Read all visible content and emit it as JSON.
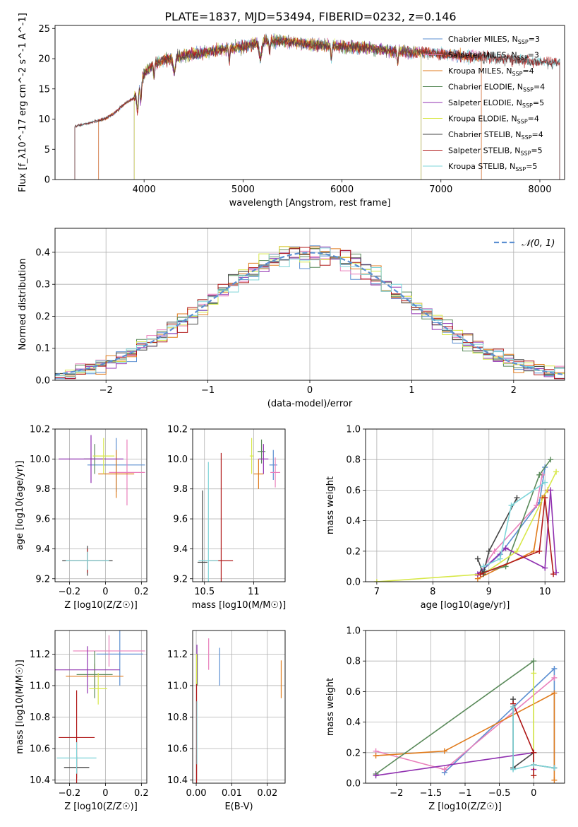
{
  "figure": {
    "title": "PLATE=1837, MJD=53494, FIBERID=0232, z=0.146"
  },
  "colors": {
    "Chabrier MILES": "#5b8fd1",
    "Salpeter MILES": "#e97fbb",
    "Kroupa MILES": "#e07b1c",
    "Chabrier ELODIE": "#5a8a5a",
    "Salpeter ELODIE": "#9030b0",
    "Kroupa ELODIE": "#d8e84a",
    "Chabrier STELIB": "#444444",
    "Salpeter STELIB": "#b01818",
    "Kroupa STELIB": "#7ed4d8"
  },
  "chart_data": [
    {
      "id": "spectrum",
      "type": "line",
      "xlabel": "wavelength [Angstrom, rest frame]",
      "ylabel": "Flux [f_λ10^-17 erg cm^-2 s^-1 A^-1]",
      "xlim": [
        3100,
        8250
      ],
      "ylim": [
        0,
        25.5
      ],
      "xticks": [
        4000,
        5000,
        6000,
        7000,
        8000
      ],
      "yticks": [
        0,
        5,
        10,
        15,
        20,
        25
      ],
      "legend_position": "upper-right",
      "legend": [
        {
          "model": "Chabrier MILES",
          "nssp": "3"
        },
        {
          "model": "Salpeter MILES",
          "nssp": "3"
        },
        {
          "model": "Kroupa MILES",
          "nssp": "4"
        },
        {
          "model": "Chabrier ELODIE",
          "nssp": "4"
        },
        {
          "model": "Salpeter ELODIE",
          "nssp": "5"
        },
        {
          "model": "Kroupa ELODIE",
          "nssp": "4"
        },
        {
          "model": "Chabrier STELIB",
          "nssp": "4"
        },
        {
          "model": "Salpeter STELIB",
          "nssp": "5"
        },
        {
          "model": "Kroupa STELIB",
          "nssp": "5"
        }
      ],
      "data_x": [
        3300,
        3400,
        3500,
        3600,
        3700,
        3800,
        3900,
        4000,
        4100,
        4200,
        4400,
        4600,
        4800,
        5000,
        5200,
        5400,
        5600,
        5800,
        6000,
        6200,
        6400,
        6600,
        6800,
        7000,
        7200,
        7400,
        7600,
        7800,
        8000,
        8200
      ],
      "data_y": [
        8.8,
        9.2,
        9.6,
        10,
        11,
        12.5,
        13.5,
        17.5,
        19,
        19.8,
        20.5,
        21,
        21.5,
        22,
        22.8,
        23,
        22.5,
        22.2,
        22,
        21.8,
        21.5,
        21.2,
        21,
        20.8,
        20.5,
        20.3,
        20,
        19.8,
        19.5,
        19.3
      ],
      "model_ranges": {
        "Chabrier MILES": [
          3540,
          7410
        ],
        "Salpeter MILES": [
          3540,
          7410
        ],
        "Kroupa MILES": [
          3540,
          7410
        ],
        "Chabrier ELODIE": [
          3900,
          6800
        ],
        "Salpeter ELODIE": [
          3900,
          6800
        ],
        "Kroupa ELODIE": [
          3900,
          6800
        ],
        "Chabrier STELIB": [
          3300,
          8200
        ],
        "Salpeter STELIB": [
          3300,
          8200
        ],
        "Kroupa STELIB": [
          3300,
          8200
        ]
      }
    },
    {
      "id": "residuals",
      "type": "line",
      "xlabel": "(data-model)/error",
      "ylabel": "Normed distribution",
      "xlim": [
        -2.5,
        2.5
      ],
      "ylim": [
        0,
        0.475
      ],
      "xticks": [
        -2,
        -1,
        0,
        1,
        2
      ],
      "yticks": [
        0.0,
        0.1,
        0.2,
        0.3,
        0.4
      ],
      "legend": "𝒩(0, 1)",
      "legend_position": "upper-right"
    },
    {
      "id": "age_vs_Z",
      "type": "scatter",
      "xlabel": "Z [log10(Z/Z☉)]",
      "ylabel": "age [log10(age/yr)]",
      "xlim": [
        -0.28,
        0.23
      ],
      "ylim": [
        9.18,
        10.2
      ],
      "xticks": [
        -0.2,
        0.0,
        0.2
      ],
      "yticks": [
        9.2,
        9.4,
        9.6,
        9.8,
        10.0,
        10.2
      ],
      "points": [
        {
          "model": "Chabrier MILES",
          "x": 0.06,
          "y": 9.96,
          "xerr": 0.16,
          "yerr": 0.18
        },
        {
          "model": "Salpeter MILES",
          "x": 0.12,
          "y": 9.91,
          "xerr": 0.1,
          "yerr": 0.22
        },
        {
          "model": "Kroupa MILES",
          "x": 0.06,
          "y": 9.9,
          "xerr": 0.1,
          "yerr": 0.16
        },
        {
          "model": "Chabrier ELODIE",
          "x": -0.06,
          "y": 10.0,
          "xerr": 0.06,
          "yerr": 0.1
        },
        {
          "model": "Salpeter ELODIE",
          "x": -0.08,
          "y": 10.0,
          "xerr": 0.18,
          "yerr": 0.16
        },
        {
          "model": "Kroupa ELODIE",
          "x": -0.01,
          "y": 10.02,
          "xerr": 0.06,
          "yerr": 0.12
        },
        {
          "model": "Chabrier STELIB",
          "x": -0.1,
          "y": 9.32,
          "xerr": 0.14,
          "yerr": 0.1
        },
        {
          "model": "Salpeter STELIB",
          "x": -0.1,
          "y": 9.32,
          "xerr": 0.1,
          "yerr": 0.08
        },
        {
          "model": "Kroupa STELIB",
          "x": -0.1,
          "y": 9.32,
          "xerr": 0.12,
          "yerr": 0.06
        }
      ]
    },
    {
      "id": "age_vs_mass",
      "type": "scatter",
      "xlabel": "mass [log10(M/M☉)]",
      "ylabel": "",
      "xlim": [
        10.38,
        11.32
      ],
      "ylim": [
        9.18,
        10.2
      ],
      "xticks": [
        10.5,
        11.0
      ],
      "yticks": [
        9.2,
        9.4,
        9.6,
        9.8,
        10.0,
        10.2
      ],
      "points": [
        {
          "model": "Chabrier MILES",
          "x": 11.2,
          "y": 9.96,
          "xerr": 0.04,
          "yerr": 0.1
        },
        {
          "model": "Salpeter MILES",
          "x": 11.22,
          "y": 9.91,
          "xerr": 0.05,
          "yerr": 0.1
        },
        {
          "model": "Kroupa MILES",
          "x": 11.05,
          "y": 9.9,
          "xerr": 0.05,
          "yerr": 0.1
        },
        {
          "model": "Chabrier ELODIE",
          "x": 11.08,
          "y": 10.05,
          "xerr": 0.04,
          "yerr": 0.08
        },
        {
          "model": "Salpeter ELODIE",
          "x": 11.1,
          "y": 10.0,
          "xerr": 0.05,
          "yerr": 0.1
        },
        {
          "model": "Kroupa ELODIE",
          "x": 10.98,
          "y": 10.02,
          "xerr": 0.02,
          "yerr": 0.12
        },
        {
          "model": "Chabrier STELIB",
          "x": 10.48,
          "y": 9.31,
          "xerr": 0.05,
          "yerr": 0.48
        },
        {
          "model": "Salpeter STELIB",
          "x": 10.67,
          "y": 9.32,
          "xerr": 0.12,
          "yerr": 0.72
        },
        {
          "model": "Kroupa STELIB",
          "x": 10.54,
          "y": 9.32,
          "xerr": 0.1,
          "yerr": 0.66
        }
      ]
    },
    {
      "id": "weight_vs_age",
      "type": "line",
      "xlabel": "age [log10(age/yr)]",
      "ylabel": "mass weight",
      "xlim": [
        6.8,
        10.35
      ],
      "ylim": [
        0,
        1.0
      ],
      "xticks": [
        7,
        8,
        9,
        10
      ],
      "yticks": [
        0.0,
        0.2,
        0.4,
        0.6,
        0.8,
        1.0
      ],
      "series": [
        {
          "model": "Chabrier MILES",
          "x": [
            8.9,
            9.2,
            9.9,
            10.0
          ],
          "y": [
            0.08,
            0.18,
            0.52,
            0.75
          ]
        },
        {
          "model": "Salpeter MILES",
          "x": [
            8.8,
            9.1,
            9.85,
            9.95
          ],
          "y": [
            0.04,
            0.2,
            0.5,
            0.7
          ]
        },
        {
          "model": "Kroupa MILES",
          "x": [
            8.8,
            9.8,
            9.95,
            10.05
          ],
          "y": [
            0.02,
            0.2,
            0.55,
            0.6
          ]
        },
        {
          "model": "Chabrier ELODIE",
          "x": [
            8.85,
            9.3,
            9.9,
            10.1
          ],
          "y": [
            0.06,
            0.1,
            0.7,
            0.8
          ]
        },
        {
          "model": "Salpeter ELODIE",
          "x": [
            8.8,
            9.3,
            10.0,
            10.1,
            10.2
          ],
          "y": [
            0.05,
            0.22,
            0.09,
            0.6,
            0.06
          ]
        },
        {
          "model": "Kroupa ELODIE",
          "x": [
            7.0,
            8.9,
            9.5,
            10.2
          ],
          "y": [
            0.0,
            0.05,
            0.2,
            0.72
          ]
        },
        {
          "model": "Chabrier STELIB",
          "x": [
            8.8,
            8.9,
            9.0,
            9.5
          ],
          "y": [
            0.15,
            0.05,
            0.2,
            0.55
          ]
        },
        {
          "model": "Salpeter STELIB",
          "x": [
            8.85,
            9.9,
            10.0,
            10.15
          ],
          "y": [
            0.05,
            0.2,
            0.55,
            0.05
          ]
        },
        {
          "model": "Kroupa STELIB",
          "x": [
            8.9,
            9.2,
            9.4,
            10.0
          ],
          "y": [
            0.1,
            0.15,
            0.5,
            0.65
          ]
        }
      ]
    },
    {
      "id": "mass_vs_Z",
      "type": "scatter",
      "xlabel": "Z [log10(Z/Z☉)]",
      "ylabel": "mass [log10(M/M☉)]",
      "xlim": [
        -0.28,
        0.23
      ],
      "ylim": [
        10.38,
        11.35
      ],
      "xticks": [
        -0.2,
        0.0,
        0.2
      ],
      "yticks": [
        10.4,
        10.6,
        10.8,
        11.0,
        11.2
      ],
      "points": [
        {
          "model": "Chabrier MILES",
          "x": 0.08,
          "y": 11.2,
          "xerr": 0.13,
          "yerr": 0.2
        },
        {
          "model": "Salpeter MILES",
          "x": 0.02,
          "y": 11.22,
          "xerr": 0.2,
          "yerr": 0.1
        },
        {
          "model": "Kroupa MILES",
          "x": -0.06,
          "y": 11.06,
          "xerr": 0.16,
          "yerr": 0.08
        },
        {
          "model": "Chabrier ELODIE",
          "x": -0.06,
          "y": 11.07,
          "xerr": 0.1,
          "yerr": 0.15
        },
        {
          "model": "Salpeter ELODIE",
          "x": -0.1,
          "y": 11.1,
          "xerr": 0.18,
          "yerr": 0.15
        },
        {
          "model": "Kroupa ELODIE",
          "x": -0.04,
          "y": 10.98,
          "xerr": 0.05,
          "yerr": 0.1
        },
        {
          "model": "Chabrier STELIB",
          "x": -0.16,
          "y": 10.48,
          "xerr": 0.07,
          "yerr": 0.07
        },
        {
          "model": "Salpeter STELIB",
          "x": -0.16,
          "y": 10.67,
          "xerr": 0.1,
          "yerr": 0.3
        },
        {
          "model": "Kroupa STELIB",
          "x": -0.16,
          "y": 10.54,
          "xerr": 0.11,
          "yerr": 0.1
        }
      ]
    },
    {
      "id": "mass_vs_ebv",
      "type": "scatter",
      "xlabel": "E(B-V)",
      "ylabel": "",
      "xlim": [
        -0.001,
        0.025
      ],
      "ylim": [
        10.38,
        11.35
      ],
      "xticks": [
        0.0,
        0.01,
        0.02
      ],
      "xtick_labels": [
        "0.00",
        "0.01",
        "0.02"
      ],
      "yticks": [
        10.4,
        10.6,
        10.8,
        11.0,
        11.2
      ],
      "points": [
        {
          "model": "Chabrier MILES",
          "x": 0.0066,
          "y": 11.12,
          "xerr": 0.0,
          "yerr": 0.12
        },
        {
          "model": "Salpeter MILES",
          "x": 0.0035,
          "y": 11.2,
          "xerr": 0.0,
          "yerr": 0.1
        },
        {
          "model": "Kroupa MILES",
          "x": 0.0239,
          "y": 11.04,
          "xerr": 0.0,
          "yerr": 0.12
        },
        {
          "model": "Chabrier ELODIE",
          "x": 0.0003,
          "y": 11.1,
          "xerr": 0.0,
          "yerr": 0.1
        },
        {
          "model": "Salpeter ELODIE",
          "x": 0.0002,
          "y": 11.14,
          "xerr": 0.0,
          "yerr": 0.12
        },
        {
          "model": "Kroupa ELODIE",
          "x": 0.0001,
          "y": 11.1,
          "xerr": 0.0,
          "yerr": 0.1
        },
        {
          "model": "Chabrier STELIB",
          "x": 0.0001,
          "y": 10.48,
          "xerr": 0.0,
          "yerr": 0.08
        },
        {
          "model": "Salpeter STELIB",
          "x": 0.0001,
          "y": 10.67,
          "xerr": 0.0,
          "yerr": 0.34
        },
        {
          "model": "Kroupa STELIB",
          "x": 0.0002,
          "y": 10.7,
          "xerr": 0.0,
          "yerr": 0.2
        }
      ]
    },
    {
      "id": "weight_vs_Z",
      "type": "line",
      "xlabel": "Z [log10(Z/Z☉)]",
      "ylabel": "mass weight",
      "xlim": [
        -2.45,
        0.45
      ],
      "ylim": [
        0,
        1.0
      ],
      "xticks": [
        -2.0,
        -1.5,
        -1.0,
        -0.5,
        0.0
      ],
      "yticks": [
        0.0,
        0.2,
        0.4,
        0.6,
        0.8,
        1.0
      ],
      "series": [
        {
          "model": "Chabrier MILES",
          "x": [
            -1.3,
            0.3,
            0.3
          ],
          "y": [
            0.07,
            0.75,
            0.1
          ]
        },
        {
          "model": "Salpeter MILES",
          "x": [
            -2.3,
            -1.3,
            0.3
          ],
          "y": [
            0.21,
            0.09,
            0.69
          ]
        },
        {
          "model": "Kroupa MILES",
          "x": [
            -2.3,
            -1.3,
            0.3,
            0.3
          ],
          "y": [
            0.18,
            0.21,
            0.59,
            0.02
          ]
        },
        {
          "model": "Chabrier ELODIE",
          "x": [
            -2.3,
            0.0,
            0.0
          ],
          "y": [
            0.06,
            0.8,
            0.12
          ]
        },
        {
          "model": "Salpeter ELODIE",
          "x": [
            -2.3,
            0.0,
            0.0
          ],
          "y": [
            0.05,
            0.2,
            0.09
          ]
        },
        {
          "model": "Kroupa ELODIE",
          "x": [
            0.0,
            0.0,
            0.0
          ],
          "y": [
            0.72,
            0.2,
            0.05
          ]
        },
        {
          "model": "Chabrier STELIB",
          "x": [
            -0.3,
            -0.3,
            0.0,
            0.0,
            0.3
          ],
          "y": [
            0.55,
            0.1,
            0.2,
            0.12,
            0.1
          ]
        },
        {
          "model": "Salpeter STELIB",
          "x": [
            -0.3,
            0.0,
            0.0
          ],
          "y": [
            0.52,
            0.2,
            0.05
          ]
        },
        {
          "model": "Kroupa STELIB",
          "x": [
            -0.3,
            -0.3,
            0.0,
            0.3
          ],
          "y": [
            0.5,
            0.09,
            0.12,
            0.1
          ]
        }
      ]
    }
  ]
}
